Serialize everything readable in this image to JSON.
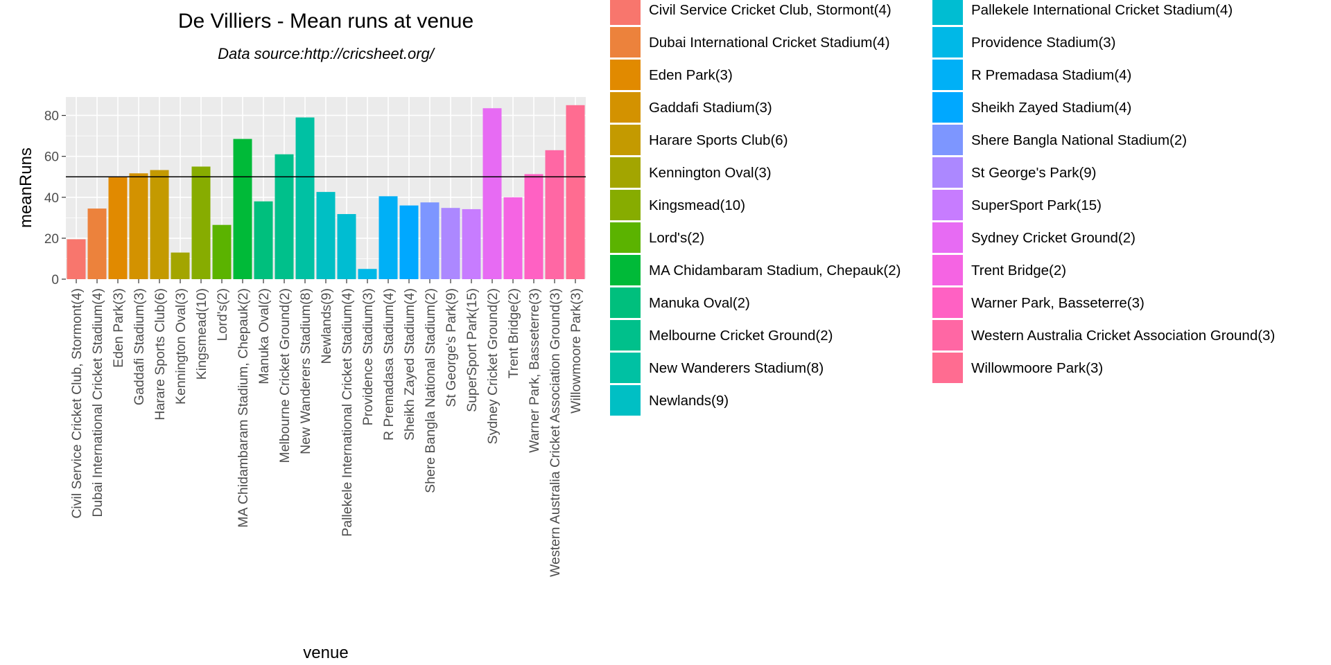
{
  "chart_data": {
    "type": "bar",
    "title": "De Villiers - Mean runs at venue",
    "subtitle": "Data source:http://cricsheet.org/",
    "xlabel": "venue",
    "ylabel": "meanRuns",
    "ylim": [
      0,
      89
    ],
    "yticks": [
      0,
      20,
      40,
      60,
      80
    ],
    "reference_line": 50,
    "grid": true,
    "legend_position": "right",
    "categories": [
      "Civil Service Cricket Club, Stormont(4)",
      "Dubai International Cricket Stadium(4)",
      "Eden Park(3)",
      "Gaddafi Stadium(3)",
      "Harare Sports Club(6)",
      "Kennington Oval(3)",
      "Kingsmead(10)",
      "Lord's(2)",
      "MA Chidambaram Stadium, Chepauk(2)",
      "Manuka Oval(2)",
      "Melbourne Cricket Ground(2)",
      "New Wanderers Stadium(8)",
      "Newlands(9)",
      "Pallekele International Cricket Stadium(4)",
      "Providence Stadium(3)",
      "R Premadasa Stadium(4)",
      "Sheikh Zayed Stadium(4)",
      "Shere Bangla National Stadium(2)",
      "St George's Park(9)",
      "SuperSport Park(15)",
      "Sydney Cricket Ground(2)",
      "Trent Bridge(2)",
      "Warner Park, Basseterre(3)",
      "Western Australia Cricket Association Ground(3)",
      "Willowmoore Park(3)"
    ],
    "values": [
      19.5,
      34.5,
      50.0,
      51.7,
      53.3,
      13.0,
      55.0,
      26.5,
      68.5,
      38.0,
      61.0,
      79.0,
      42.6,
      31.8,
      5.0,
      40.5,
      36.0,
      37.5,
      34.8,
      34.2,
      83.5,
      40.0,
      51.3,
      63.0,
      85.0
    ],
    "colors": [
      "#F8766D",
      "#EC823C",
      "#E18A00",
      "#D39200",
      "#C49A00",
      "#A3A500",
      "#87AC00",
      "#5BB300",
      "#00BA38",
      "#00BF7D",
      "#00C08B",
      "#00C1A3",
      "#00BFC4",
      "#00BDD2",
      "#00B8E7",
      "#00B0F6",
      "#00A8FF",
      "#7D96FF",
      "#AC88FF",
      "#C77CFF",
      "#E76BF3",
      "#F564E3",
      "#FF61C3",
      "#FF67A4",
      "#FF6C91"
    ]
  }
}
